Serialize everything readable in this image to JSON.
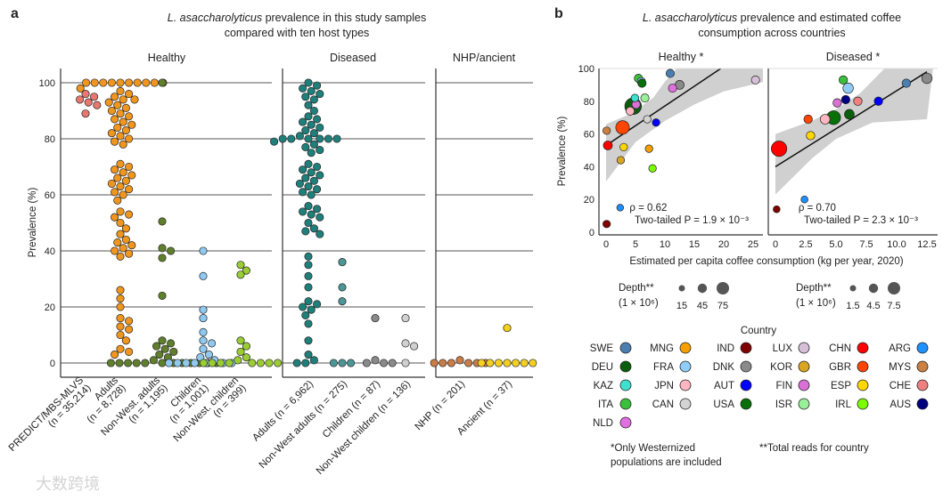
{
  "chart_data": [
    {
      "panel": "a",
      "type": "scatter",
      "title_italic": "L. asaccharolyticus",
      "title_rest": " prevalence in this study samples",
      "title_line2": "compared with ten host types",
      "ylabel": "Prevalence (%)",
      "ylim": [
        0,
        100
      ],
      "yticks": [
        "0",
        "20",
        "40",
        "60",
        "80",
        "100"
      ],
      "grid": true,
      "facets": [
        {
          "name": "Healthy",
          "groups": [
            {
              "label": [
                "PREDICT/MBS-MLVS",
                "(n = 35,214)"
              ],
              "color": "#e8786e",
              "values": [
                96,
                95,
                94,
                93,
                92,
                89
              ]
            },
            {
              "label": [
                "Adults",
                "(n = 8,728)"
              ],
              "color": "#f0961e",
              "values": [
                100,
                100,
                100,
                100,
                100,
                100,
                100,
                100,
                100,
                100,
                98,
                97,
                96,
                95,
                94,
                94,
                93,
                92,
                91,
                90,
                89,
                88,
                87,
                86,
                85,
                84,
                83,
                82,
                81,
                80,
                79,
                78,
                71,
                70,
                69,
                68,
                67,
                66,
                65,
                64,
                63,
                62,
                61,
                60,
                58,
                54,
                53,
                52,
                50,
                48,
                46,
                44,
                43,
                42,
                41,
                40,
                39,
                38,
                26,
                23,
                20,
                16,
                15,
                13,
                12,
                10,
                8,
                5,
                4,
                3
              ]
            },
            {
              "label": [
                "Non-West. adults",
                "(n = 1,195)"
              ],
              "color": "#5f7f2c",
              "values": [
                100,
                50.5,
                41,
                40,
                37.5,
                24,
                8,
                7,
                6,
                5,
                4,
                3,
                2,
                1,
                0,
                0,
                0,
                0,
                0,
                0,
                0,
                0,
                0,
                0,
                0,
                0
              ]
            },
            {
              "label": [
                "Children",
                "(n = 1,001)"
              ],
              "color": "#90c8ee",
              "values": [
                40,
                31,
                19,
                16,
                11,
                8,
                7,
                5,
                3,
                2,
                1,
                0,
                0,
                0,
                0,
                0,
                0,
                0
              ]
            },
            {
              "label": [
                "Non-West. children",
                "(n = 399)"
              ],
              "color": "#9acd32",
              "values": [
                35,
                33,
                31.5,
                8,
                6,
                4,
                2,
                1,
                0,
                0,
                0,
                0,
                0,
                0,
                0,
                0
              ]
            }
          ]
        },
        {
          "name": "Diseased",
          "groups": [
            {
              "label": [
                "Adults (n = 6,962)"
              ],
              "color": "#1f7f7a",
              "values": [
                100,
                99,
                98,
                97,
                96,
                95,
                94,
                92,
                90,
                88,
                87,
                86,
                85,
                84,
                83,
                82,
                81,
                80,
                80,
                80,
                80,
                80,
                80,
                79,
                78,
                77,
                76,
                75,
                71,
                70,
                69,
                68,
                67,
                66,
                65,
                64,
                63,
                62,
                61,
                60,
                56,
                55,
                54,
                53,
                52,
                50,
                48,
                47,
                46,
                38,
                35,
                31,
                27,
                22,
                21,
                20,
                19,
                17,
                14,
                8,
                3,
                1,
                0,
                0
              ]
            },
            {
              "label": [
                "Non-West adults (n = 275)"
              ],
              "color": "#4b9696",
              "values": [
                36,
                27,
                22,
                0,
                0,
                0
              ]
            },
            {
              "label": [
                "Children (n = 87)"
              ],
              "color": "#8a8a8a",
              "values": [
                16,
                1,
                0,
                0,
                0
              ]
            },
            {
              "label": [
                "Non-West children (n = 136)"
              ],
              "color": "#d0d0d0",
              "values": [
                16,
                7,
                6,
                0
              ]
            }
          ]
        },
        {
          "name": "NHP/ancient",
          "groups": [
            {
              "label": [
                "NHP (n = 201)"
              ],
              "color": "#c97c48",
              "values": [
                1,
                0,
                0,
                0,
                0,
                0,
                0
              ]
            },
            {
              "label": [
                "Ancient (n = 37)"
              ],
              "color": "#f5d020",
              "values": [
                12.5,
                0,
                0,
                0,
                0,
                0,
                0,
                0
              ]
            }
          ]
        }
      ]
    },
    {
      "panel": "b",
      "type": "scatter",
      "title_italic": "L. asaccharolyticus",
      "title_rest": " prevalence and estimated coffee",
      "title_line2": "consumption across countries",
      "ylabel": "Prevalence  (%)",
      "xlabel": "Estimated per capita coffee consumption (kg per year, 2020)",
      "ylim": [
        0,
        100
      ],
      "yticks": [
        "0",
        "20",
        "40",
        "60",
        "80",
        "100"
      ],
      "facets": [
        {
          "name": "Healthy *",
          "xlim": [
            -1,
            27
          ],
          "xticks": [
            "0",
            "5",
            "10",
            "15",
            "20",
            "25"
          ],
          "xtick_values": [
            0,
            5,
            10,
            15,
            20,
            25
          ],
          "rho": "ρ = 0.62",
          "p": "Two-tailed P = 1.9 × 10⁻³",
          "fit": {
            "x": [
              0,
              19.5
            ],
            "y": [
              53,
              100
            ]
          },
          "ci_upper": [
            [
              0,
              66
            ],
            [
              4,
              72
            ],
            [
              8,
              82
            ],
            [
              10,
              92
            ],
            [
              12,
              100
            ],
            [
              27,
              100
            ]
          ],
          "ci_lower": [
            [
              0,
              31
            ],
            [
              5,
              55
            ],
            [
              10,
              68
            ],
            [
              15,
              78
            ],
            [
              20,
              86
            ],
            [
              27,
              92
            ]
          ],
          "points": [
            {
              "c": "SWE",
              "x": 10.9,
              "y": 97,
              "depth": 30
            },
            {
              "c": "ITA",
              "x": 5.5,
              "y": 94,
              "depth": 30
            },
            {
              "c": "FRA",
              "x": 6,
              "y": 92,
              "depth": 30
            },
            {
              "c": "USA",
              "x": 6.1,
              "y": 91,
              "depth": 30
            },
            {
              "c": "KAZ",
              "x": 4.9,
              "y": 82,
              "depth": 25
            },
            {
              "c": "ISR",
              "x": 6.6,
              "y": 82,
              "depth": 30
            },
            {
              "c": "NLD",
              "x": 11.3,
              "y": 88,
              "depth": 30
            },
            {
              "c": "DNK",
              "x": 12.5,
              "y": 90,
              "depth": 35
            },
            {
              "c": "LUX",
              "x": 25.4,
              "y": 93,
              "depth": 30
            },
            {
              "c": "DEU",
              "x": 4.6,
              "y": 77,
              "depth": 120
            },
            {
              "c": "FIN",
              "x": 5.1,
              "y": 78,
              "depth": 30
            },
            {
              "c": "JPN",
              "x": 4.1,
              "y": 74,
              "depth": 30
            },
            {
              "c": "CAN",
              "x": 7,
              "y": 69,
              "depth": 25
            },
            {
              "c": "AUT",
              "x": 8.5,
              "y": 67,
              "depth": 25
            },
            {
              "c": "GBR",
              "x": 2.8,
              "y": 64,
              "depth": 80
            },
            {
              "c": "MYS",
              "x": 0.1,
              "y": 62,
              "depth": 25
            },
            {
              "c": "CHN",
              "x": 0.3,
              "y": 53,
              "depth": 35
            },
            {
              "c": "ESP",
              "x": 3,
              "y": 52,
              "depth": 25
            },
            {
              "c": "MNG",
              "x": 7.3,
              "y": 51,
              "depth": 25
            },
            {
              "c": "KOR",
              "x": 2.5,
              "y": 44,
              "depth": 25
            },
            {
              "c": "IRL",
              "x": 7.9,
              "y": 39,
              "depth": 25
            },
            {
              "c": "ARG",
              "x": 2.4,
              "y": 15,
              "depth": 20
            },
            {
              "c": "IND",
              "x": 0.1,
              "y": 5,
              "depth": 25
            }
          ]
        },
        {
          "name": "Diseased *",
          "xlim": [
            -0.6,
            13
          ],
          "xticks": [
            "0",
            "2.5",
            "5.0",
            "7.5",
            "10.0",
            "12.5"
          ],
          "xtick_values": [
            0,
            2.5,
            5,
            7.5,
            10,
            12.5
          ],
          "rho": "ρ = 0.70",
          "p": "Two-tailed P = 2.3 × 10⁻³",
          "fit": {
            "x": [
              0,
              12.5
            ],
            "y": [
              40,
              98
            ]
          },
          "ci_upper": [
            [
              0,
              60
            ],
            [
              3,
              68
            ],
            [
              5,
              75
            ],
            [
              7,
              85
            ],
            [
              9,
              100
            ],
            [
              13,
              100
            ]
          ],
          "ci_lower": [
            [
              0,
              23
            ],
            [
              3,
              45
            ],
            [
              5,
              57
            ],
            [
              8,
              67
            ],
            [
              12.5,
              69
            ]
          ],
          "points": [
            {
              "c": "CHN",
              "x": 0.3,
              "y": 51,
              "depth": 10
            },
            {
              "c": "IND",
              "x": 0.1,
              "y": 14,
              "depth": 2
            },
            {
              "c": "ARG",
              "x": 2.4,
              "y": 20,
              "depth": 2
            },
            {
              "c": "GBR",
              "x": 2.7,
              "y": 69,
              "depth": 3
            },
            {
              "c": "ESP",
              "x": 2.9,
              "y": 59,
              "depth": 3
            },
            {
              "c": "JPN",
              "x": 4.1,
              "y": 69,
              "depth": 4
            },
            {
              "c": "USA",
              "x": 4.8,
              "y": 70,
              "depth": 8
            },
            {
              "c": "ITA",
              "x": 5.6,
              "y": 93,
              "depth": 3
            },
            {
              "c": "FIN",
              "x": 5.1,
              "y": 79,
              "depth": 3
            },
            {
              "c": "AUS",
              "x": 5.8,
              "y": 81,
              "depth": 3
            },
            {
              "c": "FRA",
              "x": 6,
              "y": 88,
              "depth": 4.5
            },
            {
              "c": "DEU",
              "x": 6.1,
              "y": 72,
              "depth": 4
            },
            {
              "c": "CHE",
              "x": 6.8,
              "y": 80,
              "depth": 3
            },
            {
              "c": "AUT",
              "x": 8.5,
              "y": 80,
              "depth": 3
            },
            {
              "c": "SWE",
              "x": 10.8,
              "y": 91,
              "depth": 3
            },
            {
              "c": "DNK",
              "x": 12.5,
              "y": 94,
              "depth": 4.5
            }
          ]
        }
      ],
      "depth_legend": [
        {
          "title": "Depth**",
          "unit": "(1 × 10⁶)",
          "values": [
            "15",
            "45",
            "75"
          ]
        },
        {
          "title": "Depth**",
          "unit": "(1 × 10⁶)",
          "values": [
            "1.5",
            "4.5",
            "7.5"
          ]
        }
      ],
      "legend_title": "Country",
      "countries": [
        [
          "SWE",
          "#4a7fb0"
        ],
        [
          "DEU",
          "#0b5e0b"
        ],
        [
          "KAZ",
          "#40e0d0"
        ],
        [
          "ITA",
          "#3cbf3c"
        ],
        [
          "NLD",
          "#e070e0"
        ],
        [
          "MNG",
          "#f5a000"
        ],
        [
          "FRA",
          "#90ccf5"
        ],
        [
          "JPN",
          "#ffb6c1"
        ],
        [
          "CAN",
          "#d3d3d3"
        ],
        [
          "IND",
          "#800000"
        ],
        [
          "DNK",
          "#8a8a8a"
        ],
        [
          "AUT",
          "#0000ff"
        ],
        [
          "USA",
          "#087008"
        ],
        [
          "LUX",
          "#d8bfd8"
        ],
        [
          "KOR",
          "#daa520"
        ],
        [
          "FIN",
          "#da70d6"
        ],
        [
          "ISR",
          "#98f098"
        ],
        [
          "CHN",
          "#ff0000"
        ],
        [
          "GBR",
          "#ff4500"
        ],
        [
          "ESP",
          "#ffd700"
        ],
        [
          "IRL",
          "#7cfc00"
        ],
        [
          "ARG",
          "#1e90ff"
        ],
        [
          "MYS",
          "#c98040"
        ],
        [
          "CHE",
          "#f08080"
        ],
        [
          "AUS",
          "#000080"
        ]
      ],
      "footnote1": [
        "*Only Westernized",
        "populations are included"
      ],
      "footnote2": "**Total reads for country"
    }
  ],
  "panel_letters": [
    "a",
    "b"
  ],
  "watermark": "大数跨境"
}
